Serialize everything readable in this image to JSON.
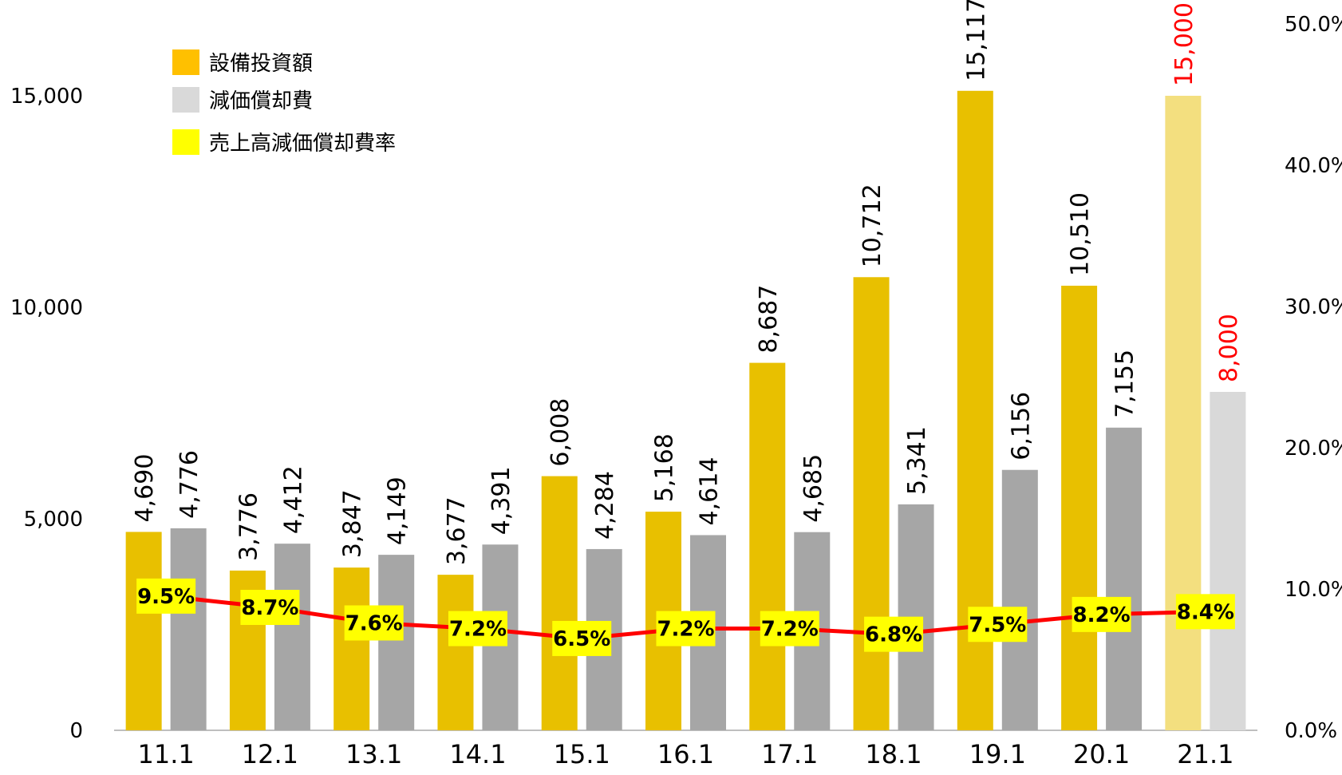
{
  "chart_data": {
    "type": "bar",
    "categories": [
      "11.1",
      "12.1",
      "13.1",
      "14.1",
      "15.1",
      "16.1",
      "17.1",
      "18.1",
      "19.1",
      "20.1",
      "21.1"
    ],
    "series": [
      {
        "name": "設備投資額",
        "kind": "bar",
        "axis": "left",
        "values": [
          4690,
          3776,
          3847,
          3677,
          6008,
          5168,
          8687,
          10712,
          15117,
          10510,
          15000
        ],
        "labels": [
          "4,690",
          "3,776",
          "3,847",
          "3,677",
          "6,008",
          "5,168",
          "8,687",
          "10,712",
          "15,117",
          "10,510",
          "15,000"
        ],
        "color": "#E8C000",
        "forecast_color": "#F3DF7F"
      },
      {
        "name": "減価償却費",
        "kind": "bar",
        "axis": "left",
        "values": [
          4776,
          4412,
          4149,
          4391,
          4284,
          4614,
          4685,
          5341,
          6156,
          7155,
          8000
        ],
        "labels": [
          "4,776",
          "4,412",
          "4,149",
          "4,391",
          "4,284",
          "4,614",
          "4,685",
          "5,341",
          "6,156",
          "7,155",
          "8,000"
        ],
        "color": "#A6A6A6",
        "forecast_color": "#D9D9D9"
      },
      {
        "name": "売上高減価償却費率",
        "kind": "line",
        "axis": "right",
        "values": [
          9.5,
          8.7,
          7.6,
          7.2,
          6.5,
          7.2,
          7.2,
          6.8,
          7.5,
          8.2,
          8.4
        ],
        "labels": [
          "9.5%",
          "8.7%",
          "7.6%",
          "7.2%",
          "6.5%",
          "7.2%",
          "7.2%",
          "6.8%",
          "7.5%",
          "8.2%",
          "8.4%"
        ],
        "color": "#FF0000",
        "label_bg": "#FFFF00"
      }
    ],
    "forecast_index": 10,
    "forecast_label_color": "#FF0000",
    "y_left": {
      "min": 0,
      "max": 17500,
      "ticks": [
        0,
        5000,
        10000,
        15000
      ],
      "tick_labels": [
        "0",
        "5,000",
        "10,000",
        "15,000"
      ]
    },
    "y_right": {
      "min": 0,
      "max": 50,
      "ticks": [
        0,
        10,
        20,
        30,
        40,
        50
      ],
      "tick_labels": [
        "0.0%",
        "10.0%",
        "20.0%",
        "30.0%",
        "40.0%",
        "50.0%"
      ]
    },
    "legend": {
      "placement": "top-left",
      "items": [
        {
          "label": "設備投資額",
          "color": "#FFC000"
        },
        {
          "label": "減価償却費",
          "color": "#D9D9D9"
        },
        {
          "label": "売上高減価償却費率",
          "color": "#FFFF00"
        }
      ]
    },
    "grid": false
  }
}
